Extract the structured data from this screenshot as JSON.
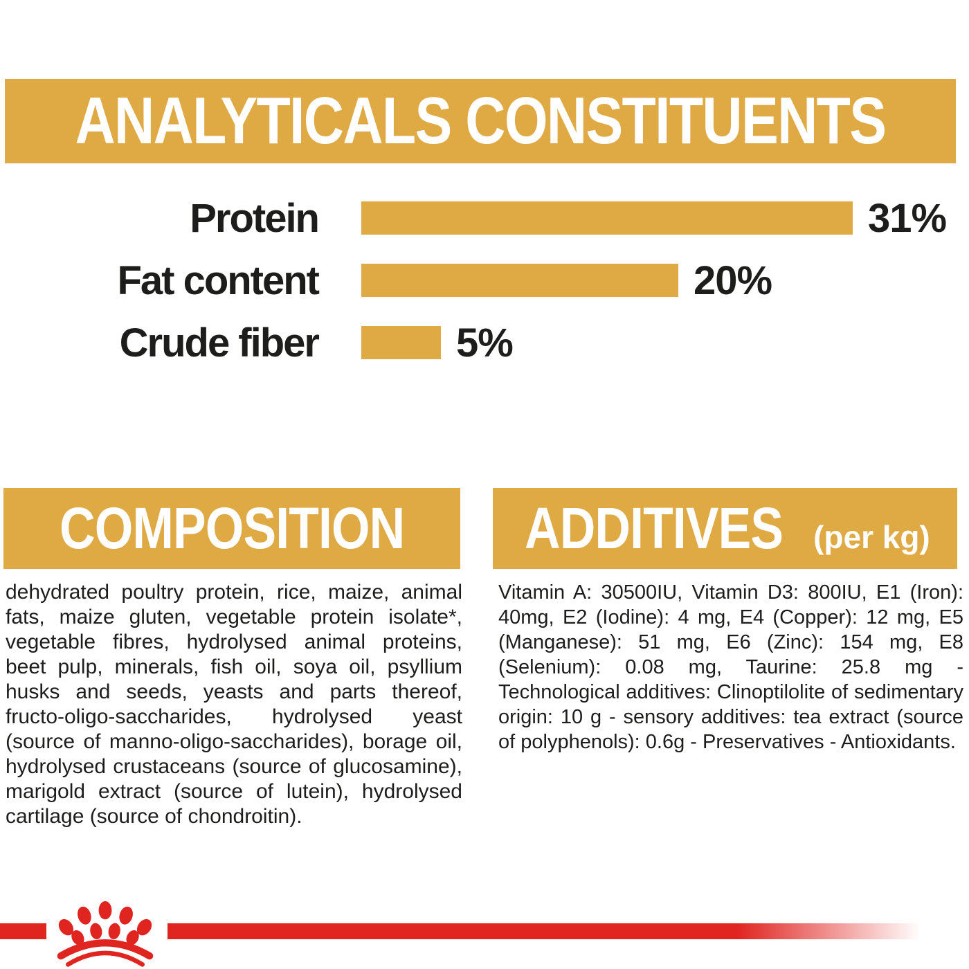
{
  "colors": {
    "gold": "#DFA944",
    "red": "#E02420",
    "text": "#1D1D1B"
  },
  "header": {
    "title": "ANALYTICALS CONSTITUENTS"
  },
  "chart_data": {
    "type": "bar",
    "orientation": "horizontal",
    "title": "ANALYTICALS CONSTITUENTS",
    "categories": [
      "Protein",
      "Fat content",
      "Crude fiber"
    ],
    "values": [
      31,
      20,
      5
    ],
    "unit": "%",
    "value_labels": [
      "31%",
      "20%",
      "5%"
    ],
    "xlim": [
      0,
      31
    ],
    "bar_color": "#DFA944",
    "grid": false,
    "legend": false
  },
  "composition": {
    "title": "COMPOSITION",
    "body": "dehydrated poultry protein, rice, maize, animal fats, maize gluten, vegetable protein isolate*, vegetable fibres, hydrolysed animal proteins, beet pulp, minerals, fish oil, soya oil, psyllium husks and seeds, yeasts and parts thereof, fructo-oligo-saccharides, hydrolysed yeast (source of manno-oligo-saccharides), borage oil, hydrolysed crustaceans (source of glucosamine), marigold extract (source of lutein), hydrolysed cartilage (source of chondroitin)."
  },
  "additives": {
    "title": "ADDITIVES",
    "unit_label": "(per kg)",
    "body": "Vitamin A: 30500IU, Vitamin D3: 800IU, E1 (Iron): 40mg, E2 (Iodine): 4 mg, E4 (Copper): 12 mg, E5 (Manganese): 51 mg, E6 (Zinc): 154 mg, E8 (Selenium): 0.08 mg, Taurine: 25.8 mg - Technological additives: Clinoptilolite of sedimentary origin: 10 g - sensory additives: tea extract (source of polyphenols): 0.6g - Preservatives - Antioxidants."
  },
  "footer": {
    "brand_logo": "royal-canin-crown"
  }
}
